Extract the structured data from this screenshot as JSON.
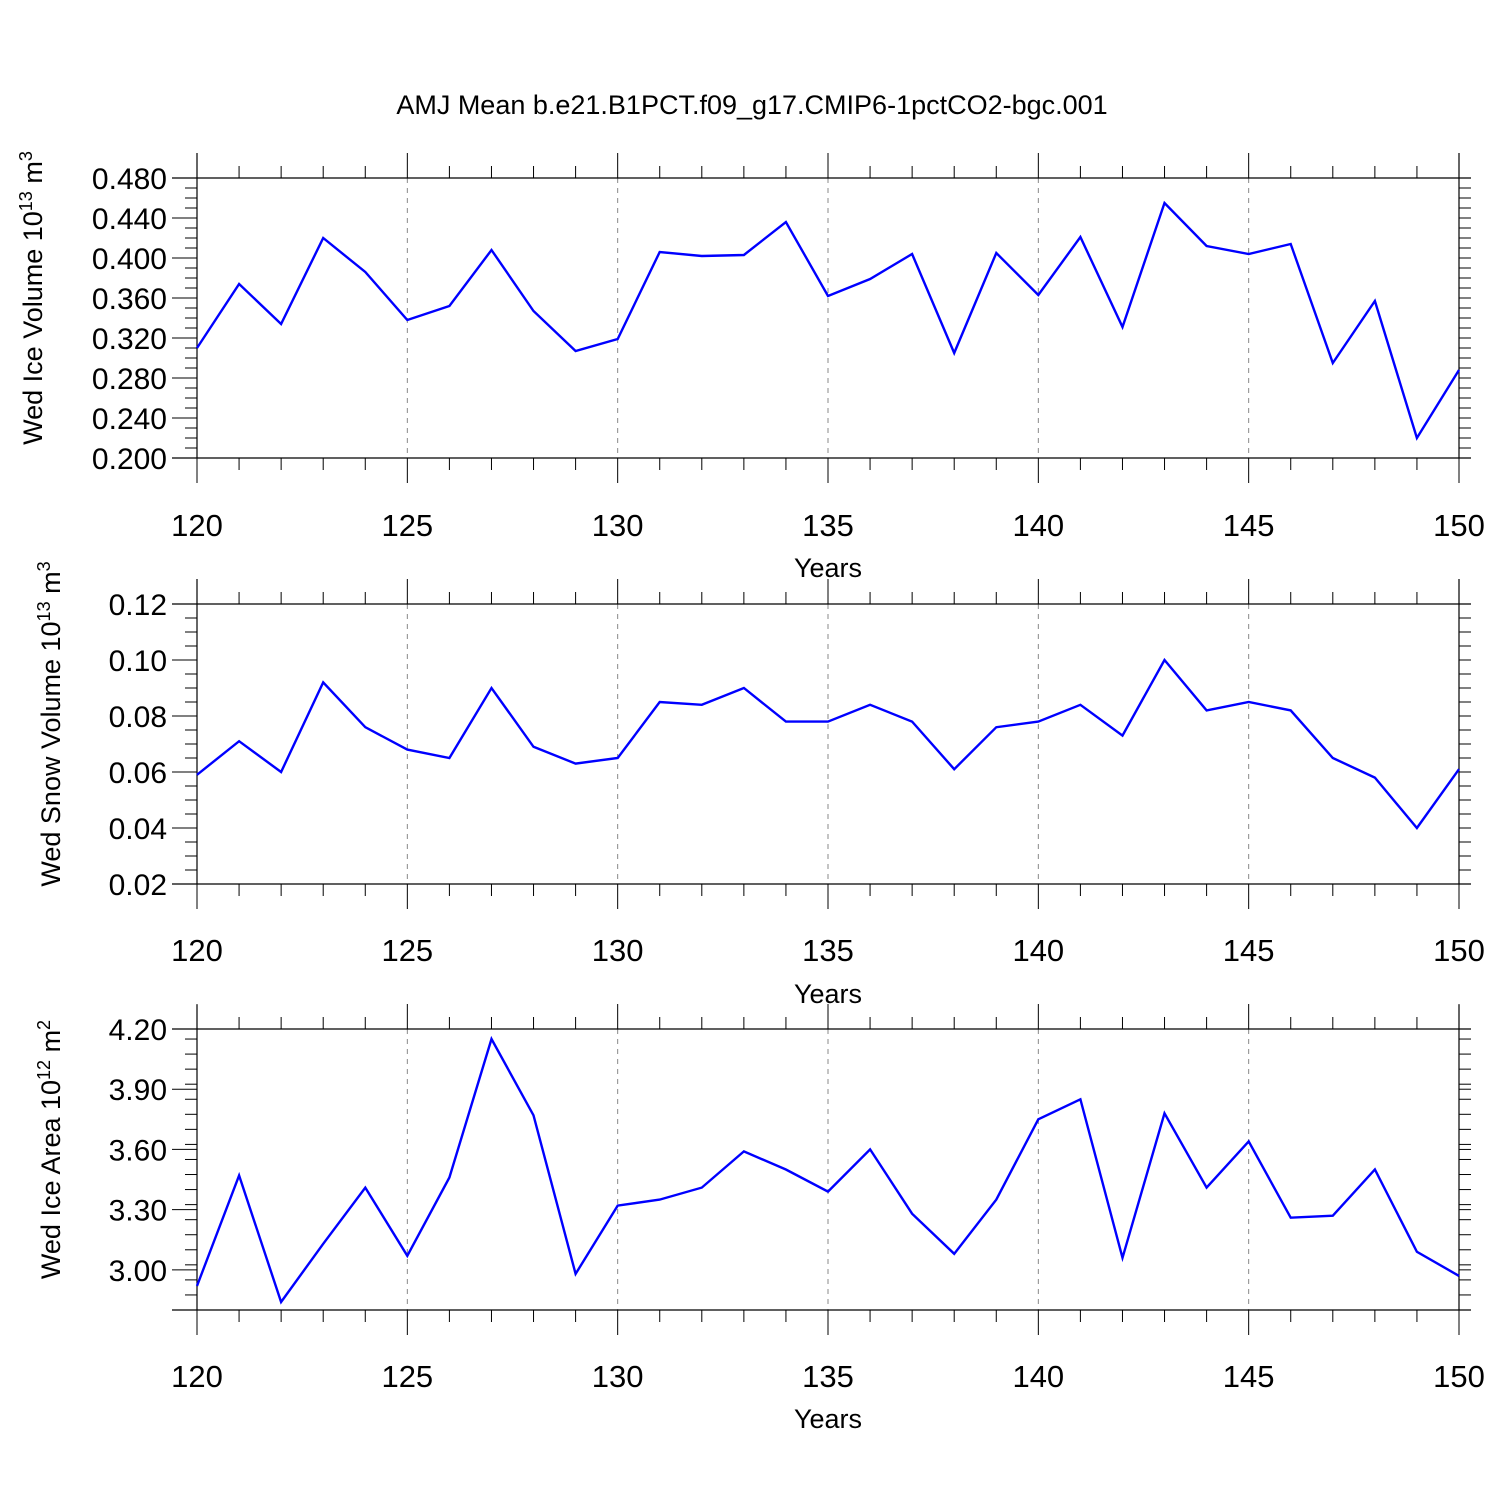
{
  "title": "AMJ Mean b.e21.B1PCT.f09_g17.CMIP6-1pctCO2-bgc.001",
  "colors": {
    "line": "#0000ff",
    "axis": "#000000",
    "grid": "#888888"
  },
  "chart_data": [
    {
      "type": "line",
      "ylabel": "Wed Ice Volume 10",
      "ylabel_exp": "13",
      "ylabel_unit": " m",
      "ylabel_unit_exp": "3",
      "xlabel": "Years",
      "xlim": [
        120,
        150
      ],
      "ylim": [
        0.2,
        0.48
      ],
      "yticks": [
        0.2,
        0.24,
        0.28,
        0.32,
        0.36,
        0.4,
        0.44,
        0.48
      ],
      "ytick_labels": [
        "0.200",
        "0.240",
        "0.280",
        "0.320",
        "0.360",
        "0.400",
        "0.440",
        "0.480"
      ],
      "xticks": [
        120,
        125,
        130,
        135,
        140,
        145,
        150
      ],
      "xtick_labels": [
        "120",
        "125",
        "130",
        "135",
        "140",
        "145",
        "150"
      ],
      "grid": "vertical dashed at major x ticks",
      "x": [
        120,
        121,
        122,
        123,
        124,
        125,
        126,
        127,
        128,
        129,
        130,
        131,
        132,
        133,
        134,
        135,
        136,
        137,
        138,
        139,
        140,
        141,
        142,
        143,
        144,
        145,
        146,
        147,
        148,
        149,
        150
      ],
      "series": [
        {
          "values": [
            0.31,
            0.374,
            0.334,
            0.42,
            0.386,
            0.338,
            0.352,
            0.408,
            0.347,
            0.307,
            0.319,
            0.406,
            0.402,
            0.403,
            0.436,
            0.362,
            0.379,
            0.404,
            0.305,
            0.405,
            0.363,
            0.421,
            0.331,
            0.455,
            0.412,
            0.404,
            0.414,
            0.295,
            0.357,
            0.22,
            0.288
          ]
        }
      ]
    },
    {
      "type": "line",
      "ylabel": "Wed Snow Volume 10",
      "ylabel_exp": "13",
      "ylabel_unit": " m",
      "ylabel_unit_exp": "3",
      "xlabel": "Years",
      "xlim": [
        120,
        150
      ],
      "ylim": [
        0.02,
        0.12
      ],
      "yticks": [
        0.02,
        0.04,
        0.06,
        0.08,
        0.1,
        0.12
      ],
      "ytick_labels": [
        "0.02",
        "0.04",
        "0.06",
        "0.08",
        "0.10",
        "0.12"
      ],
      "xticks": [
        120,
        125,
        130,
        135,
        140,
        145,
        150
      ],
      "xtick_labels": [
        "120",
        "125",
        "130",
        "135",
        "140",
        "145",
        "150"
      ],
      "grid": "vertical dashed at major x ticks",
      "x": [
        120,
        121,
        122,
        123,
        124,
        125,
        126,
        127,
        128,
        129,
        130,
        131,
        132,
        133,
        134,
        135,
        136,
        137,
        138,
        139,
        140,
        141,
        142,
        143,
        144,
        145,
        146,
        147,
        148,
        149,
        150
      ],
      "series": [
        {
          "values": [
            0.059,
            0.071,
            0.06,
            0.092,
            0.076,
            0.068,
            0.065,
            0.09,
            0.069,
            0.063,
            0.065,
            0.085,
            0.084,
            0.09,
            0.078,
            0.078,
            0.084,
            0.078,
            0.061,
            0.076,
            0.078,
            0.084,
            0.073,
            0.1,
            0.082,
            0.085,
            0.082,
            0.065,
            0.058,
            0.04,
            0.061
          ]
        }
      ]
    },
    {
      "type": "line",
      "ylabel": "Wed Ice Area 10",
      "ylabel_exp": "12",
      "ylabel_unit": " m",
      "ylabel_unit_exp": "2",
      "xlabel": "Years",
      "xlim": [
        120,
        150
      ],
      "ylim": [
        2.8,
        4.2
      ],
      "yticks": [
        3.0,
        3.3,
        3.6,
        3.9,
        4.2
      ],
      "ytick_labels": [
        "3.00",
        "3.30",
        "3.60",
        "3.90",
        "4.20"
      ],
      "xticks": [
        120,
        125,
        130,
        135,
        140,
        145,
        150
      ],
      "xtick_labels": [
        "120",
        "125",
        "130",
        "135",
        "140",
        "145",
        "150"
      ],
      "grid": "vertical dashed at major x ticks",
      "x": [
        120,
        121,
        122,
        123,
        124,
        125,
        126,
        127,
        128,
        129,
        130,
        131,
        132,
        133,
        134,
        135,
        136,
        137,
        138,
        139,
        140,
        141,
        142,
        143,
        144,
        145,
        146,
        147,
        148,
        149,
        150
      ],
      "series": [
        {
          "values": [
            2.92,
            3.47,
            2.84,
            3.13,
            3.41,
            3.07,
            3.46,
            4.15,
            3.77,
            2.98,
            3.32,
            3.35,
            3.41,
            3.59,
            3.5,
            3.39,
            3.6,
            3.28,
            3.08,
            3.35,
            3.75,
            3.85,
            3.06,
            3.78,
            3.41,
            3.64,
            3.26,
            3.27,
            3.5,
            3.09,
            2.97
          ]
        }
      ]
    }
  ]
}
